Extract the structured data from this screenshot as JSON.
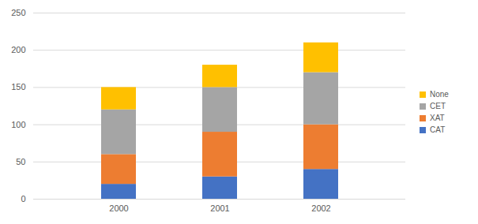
{
  "chart_data": {
    "type": "bar",
    "stacked": true,
    "categories": [
      "2000",
      "2001",
      "2002"
    ],
    "series": [
      {
        "name": "CAT",
        "color": "#4472c4",
        "values": [
          20,
          30,
          40
        ]
      },
      {
        "name": "XAT",
        "color": "#ed7d31",
        "values": [
          40,
          60,
          60
        ]
      },
      {
        "name": "CET",
        "color": "#a5a5a5",
        "values": [
          60,
          60,
          70
        ]
      },
      {
        "name": "None",
        "color": "#ffc000",
        "values": [
          30,
          30,
          40
        ]
      }
    ],
    "ylim": [
      0,
      250
    ],
    "yticks": [
      0,
      50,
      100,
      150,
      200,
      250
    ],
    "grid": true,
    "legend": "right"
  }
}
